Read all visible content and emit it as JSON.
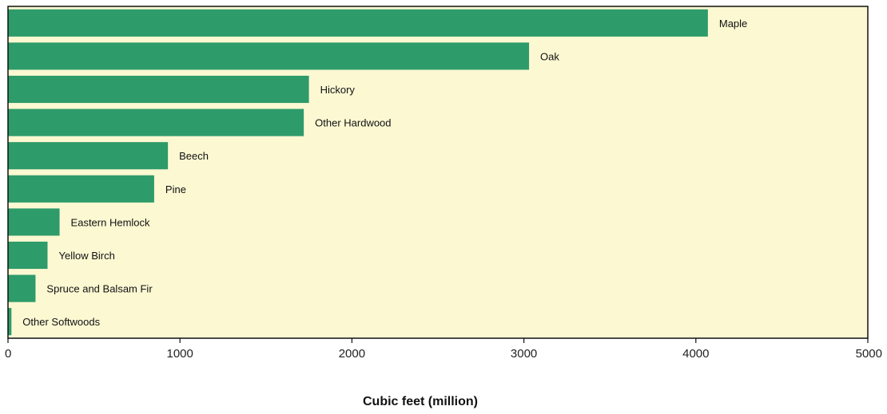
{
  "chart_data": {
    "type": "bar",
    "orientation": "horizontal",
    "categories": [
      "Maple",
      "Oak",
      "Hickory",
      "Other Hardwood",
      "Beech",
      "Pine",
      "Eastern Hemlock",
      "Yellow Birch",
      "Spruce and Balsam Fir",
      "Other Softwoods"
    ],
    "values": [
      4070,
      3030,
      1750,
      1720,
      930,
      850,
      300,
      230,
      160,
      20
    ],
    "title": "",
    "xlabel": "Cubic feet (million)",
    "ylabel": "",
    "xlim": [
      0,
      5000
    ],
    "xticks": [
      "0",
      "1000",
      "2000",
      "3000",
      "4000",
      "5000"
    ],
    "grid": false,
    "colors": {
      "bar": "#2e9b6a",
      "plot_background": "#fbf8d2",
      "frame": "#111111"
    }
  }
}
